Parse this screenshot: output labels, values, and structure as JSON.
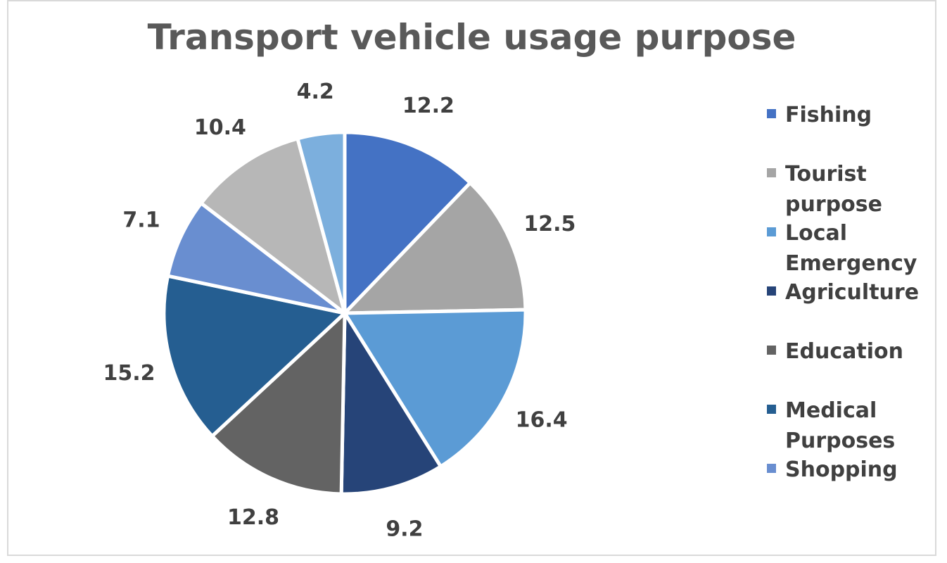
{
  "chart_data": {
    "type": "pie",
    "title": "Transport vehicle usage purpose",
    "categories": [
      "Fishing",
      "Tourist purpose",
      "Local Emergency",
      "Agriculture",
      "Education",
      "Medical Purposes",
      "Shopping",
      "",
      ""
    ],
    "values": [
      12.2,
      12.5,
      16.4,
      9.2,
      12.8,
      15.2,
      7.1,
      10.4,
      4.2
    ],
    "value_labels": [
      "12.2",
      "12.5",
      "16.4",
      "9.2",
      "12.8",
      "15.2",
      "7.1",
      "10.4",
      "4.2"
    ],
    "colors": [
      "#4472c4",
      "#a5a5a5",
      "#5b9bd5",
      "#264478",
      "#636363",
      "#255e91",
      "#698ed0",
      "#b7b7b7",
      "#7cafdd"
    ],
    "legend_position": "right",
    "legend": [
      {
        "label": "Fishing",
        "color": "#4472c4"
      },
      {
        "label": "Tourist purpose",
        "color": "#a5a5a5"
      },
      {
        "label": "Local Emergency",
        "color": "#5b9bd5"
      },
      {
        "label": "Agriculture",
        "color": "#264478"
      },
      {
        "label": "Education",
        "color": "#636363"
      },
      {
        "label": "Medical Purposes",
        "color": "#255e91"
      },
      {
        "label": "Shopping",
        "color": "#698ed0"
      }
    ]
  }
}
